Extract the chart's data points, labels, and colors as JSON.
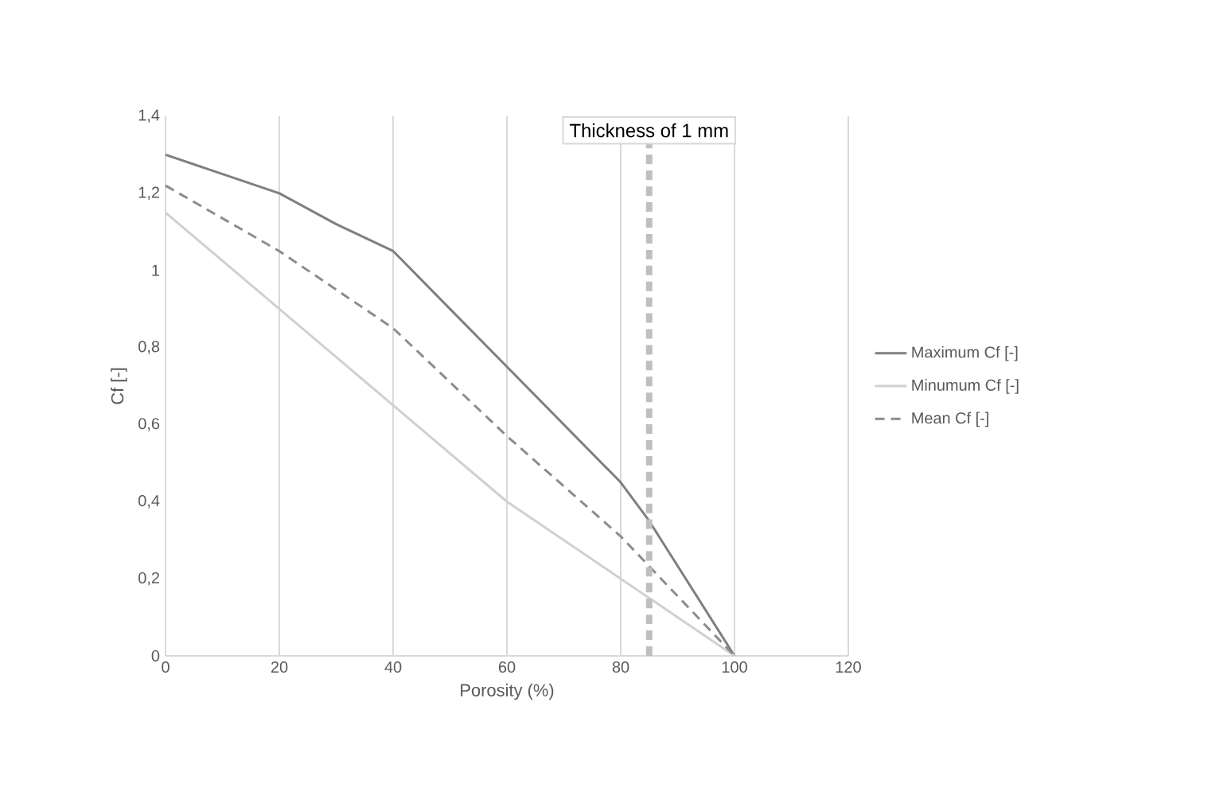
{
  "chart_data": {
    "type": "line",
    "xlabel": "Porosity (%)",
    "ylabel": "Cf [-]",
    "xlim": [
      0,
      120
    ],
    "xticks": [
      0,
      20,
      40,
      60,
      80,
      100,
      120
    ],
    "ylim": [
      0,
      1.4
    ],
    "yticks": [
      0,
      {
        "value": 0.2,
        "label": "0,2"
      },
      {
        "value": 0.4,
        "label": "0,4"
      },
      {
        "value": 0.6,
        "label": "0,6"
      },
      {
        "value": 0.8,
        "label": "0,8"
      },
      1,
      {
        "value": 1.2,
        "label": "1,2"
      },
      {
        "value": 1.4,
        "label": "1,4"
      }
    ],
    "grid": "x",
    "legend": "right",
    "marker": "none",
    "series": [
      {
        "name": "Maximum Cf [-]",
        "color": "#7f7f7f",
        "line_style": "solid",
        "x": [
          0,
          10,
          20,
          30,
          40,
          50,
          60,
          70,
          80,
          85,
          100
        ],
        "values": [
          1.3,
          1.25,
          1.2,
          1.12,
          1.05,
          0.9,
          0.75,
          0.6,
          0.45,
          0.35,
          0
        ]
      },
      {
        "name": "Minumum Cf [-]",
        "color": "#d0d0d0",
        "line_style": "solid",
        "x": [
          0,
          20,
          40,
          60,
          80,
          100
        ],
        "values": [
          1.15,
          0.9,
          0.65,
          0.4,
          0.2,
          0
        ]
      },
      {
        "name": "Mean Cf [-]",
        "color": "#8c8c8c",
        "line_style": "dashed",
        "x": [
          0,
          20,
          40,
          60,
          80,
          100
        ],
        "values": [
          1.22,
          1.05,
          0.85,
          0.57,
          0.31,
          0
        ]
      }
    ],
    "ref_lines": [
      {
        "axis": "x",
        "value": 85,
        "label": "Thickness of 1 mm",
        "color": "#bfbfbf",
        "line_style": "dashed"
      }
    ]
  }
}
